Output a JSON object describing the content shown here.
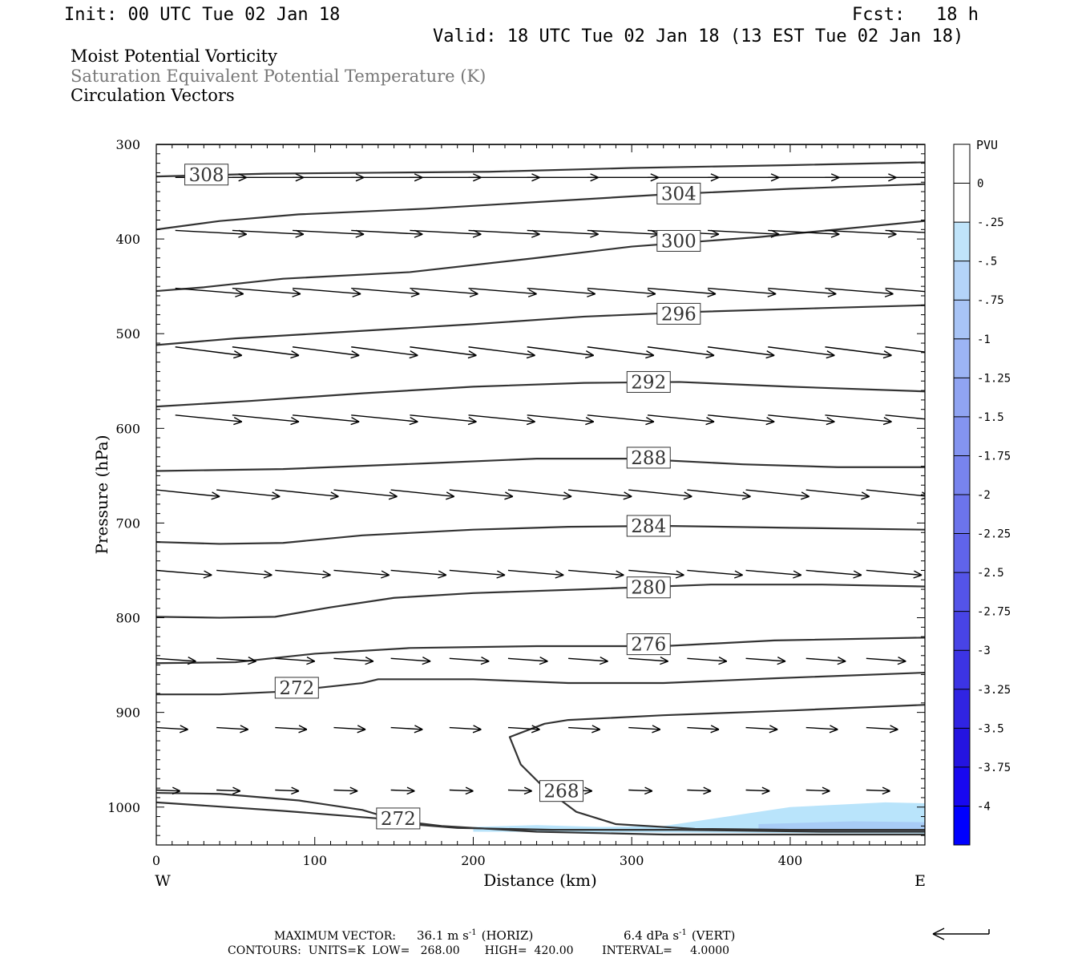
{
  "header": {
    "init": "Init: 00 UTC Tue 02 Jan 18",
    "fcst_label": "Fcst:",
    "fcst_value": "18 h",
    "valid": "Valid: 18 UTC Tue 02 Jan 18 (13 EST Tue 02 Jan 18)",
    "title_lines": [
      "Moist Potential Vorticity",
      "Saturation Equivalent Potential Temperature (K)",
      "Circulation Vectors"
    ]
  },
  "colors": {
    "contour": "#333333",
    "vector": "#000000",
    "title_secondary": "#777777",
    "shade_light": "#b9e4fb",
    "shade_mid": "#a8ccf6",
    "colorbar": [
      "#ffffff",
      "#ffffff",
      "#c0e4fa",
      "#b4d4f8",
      "#a8c4f6",
      "#9cb4f4",
      "#90a4f2",
      "#8494f0",
      "#7884ee",
      "#6c74ec",
      "#6064ea",
      "#5454e8",
      "#4844e6",
      "#3c34e4",
      "#3024e2",
      "#2414e0",
      "#1808f0",
      "#0000ff"
    ]
  },
  "chart_data": {
    "type": "contour",
    "xlabel": "Distance (km)",
    "ylabel": "Pressure (hPa)",
    "xlim": [
      0,
      485
    ],
    "ylim": [
      300,
      1040
    ],
    "y_reversed": true,
    "x_ticks": [
      0,
      100,
      200,
      300,
      400
    ],
    "x_tick_labels": [
      "0",
      "100",
      "200",
      "300",
      "400"
    ],
    "y_ticks": [
      300,
      400,
      500,
      600,
      700,
      800,
      900,
      1000
    ],
    "y_tick_labels": [
      "300",
      "400",
      "500",
      "600",
      "700",
      "800",
      "900",
      "1000"
    ],
    "x_end_labels": {
      "left": "W",
      "right": "E"
    },
    "contours": [
      {
        "value": 304,
        "label": "",
        "points": [
          [
            0,
            300
          ],
          [
            485,
            300
          ]
        ]
      },
      {
        "value": 308,
        "label": "308",
        "label_at": [
          18,
          332
        ],
        "points": [
          [
            0,
            334
          ],
          [
            70,
            331
          ],
          [
            140,
            330
          ],
          [
            210,
            329
          ],
          [
            300,
            325
          ],
          [
            400,
            322
          ],
          [
            485,
            319
          ]
        ]
      },
      {
        "value": 304,
        "label": "304",
        "label_at": [
          316,
          352
        ],
        "points": [
          [
            0,
            390
          ],
          [
            40,
            381
          ],
          [
            90,
            374
          ],
          [
            170,
            368
          ],
          [
            250,
            360
          ],
          [
            320,
            353
          ],
          [
            400,
            347
          ],
          [
            485,
            342
          ]
        ]
      },
      {
        "value": 300,
        "label": "300",
        "label_at": [
          316,
          402
        ],
        "points": [
          [
            0,
            455
          ],
          [
            30,
            451
          ],
          [
            80,
            442
          ],
          [
            160,
            435
          ],
          [
            240,
            420
          ],
          [
            300,
            408
          ],
          [
            380,
            398
          ],
          [
            485,
            381
          ]
        ]
      },
      {
        "value": 296,
        "label": "296",
        "label_at": [
          316,
          479
        ],
        "points": [
          [
            0,
            512
          ],
          [
            50,
            505
          ],
          [
            120,
            498
          ],
          [
            200,
            490
          ],
          [
            270,
            482
          ],
          [
            340,
            477
          ],
          [
            420,
            473
          ],
          [
            485,
            470
          ]
        ]
      },
      {
        "value": 292,
        "label": "292",
        "label_at": [
          297,
          551
        ],
        "points": [
          [
            0,
            577
          ],
          [
            60,
            571
          ],
          [
            130,
            563
          ],
          [
            200,
            556
          ],
          [
            270,
            552
          ],
          [
            330,
            551
          ],
          [
            400,
            556
          ],
          [
            485,
            561
          ]
        ]
      },
      {
        "value": 288,
        "label": "288",
        "label_at": [
          297,
          631
        ],
        "points": [
          [
            0,
            645
          ],
          [
            80,
            643
          ],
          [
            170,
            637
          ],
          [
            240,
            632
          ],
          [
            300,
            632
          ],
          [
            370,
            638
          ],
          [
            430,
            641
          ],
          [
            485,
            641
          ]
        ]
      },
      {
        "value": 284,
        "label": "284",
        "label_at": [
          297,
          703
        ],
        "points": [
          [
            0,
            720
          ],
          [
            40,
            722
          ],
          [
            80,
            721
          ],
          [
            130,
            713
          ],
          [
            200,
            707
          ],
          [
            260,
            704
          ],
          [
            320,
            703
          ],
          [
            400,
            705
          ],
          [
            485,
            707
          ]
        ]
      },
      {
        "value": 280,
        "label": "280",
        "label_at": [
          297,
          768
        ],
        "points": [
          [
            0,
            799
          ],
          [
            40,
            800
          ],
          [
            75,
            799
          ],
          [
            110,
            789
          ],
          [
            150,
            779
          ],
          [
            200,
            774
          ],
          [
            270,
            770
          ],
          [
            350,
            765
          ],
          [
            420,
            765
          ],
          [
            485,
            767
          ]
        ]
      },
      {
        "value": 276,
        "label": "276",
        "label_at": [
          297,
          828
        ],
        "points": [
          [
            0,
            848
          ],
          [
            50,
            847
          ],
          [
            100,
            838
          ],
          [
            160,
            832
          ],
          [
            240,
            830
          ],
          [
            320,
            830
          ],
          [
            390,
            824
          ],
          [
            485,
            821
          ]
        ]
      },
      {
        "value": 272,
        "label": "272",
        "label_at": [
          75,
          874
        ],
        "points": [
          [
            0,
            881
          ],
          [
            40,
            881
          ],
          [
            80,
            878
          ],
          [
            130,
            869
          ],
          [
            140,
            865
          ],
          [
            200,
            865
          ],
          [
            260,
            869
          ],
          [
            320,
            869
          ],
          [
            390,
            864
          ],
          [
            485,
            858
          ]
        ]
      },
      {
        "value": 268,
        "label": "268",
        "label_at": [
          242,
          983
        ],
        "points": [
          [
            485,
            892
          ],
          [
            400,
            898
          ],
          [
            320,
            903
          ],
          [
            260,
            908
          ],
          [
            245,
            912
          ],
          [
            223,
            926
          ],
          [
            230,
            955
          ],
          [
            245,
            980
          ],
          [
            265,
            1005
          ],
          [
            290,
            1018
          ],
          [
            340,
            1023
          ],
          [
            400,
            1024
          ],
          [
            485,
            1024
          ]
        ]
      },
      {
        "value": 272,
        "label": "272",
        "label_at": [
          139,
          1012
        ],
        "points": [
          [
            0,
            985
          ],
          [
            40,
            986
          ],
          [
            90,
            993
          ],
          [
            130,
            1003
          ],
          [
            160,
            1018
          ],
          [
            190,
            1022
          ],
          [
            250,
            1024
          ],
          [
            330,
            1024
          ],
          [
            420,
            1026
          ],
          [
            485,
            1026
          ]
        ]
      },
      {
        "value": 276,
        "label": "",
        "points": [
          [
            0,
            995
          ],
          [
            80,
            1004
          ],
          [
            140,
            1012
          ],
          [
            180,
            1020
          ],
          [
            240,
            1026
          ],
          [
            320,
            1029
          ],
          [
            485,
            1029
          ]
        ]
      }
    ],
    "vector_rows": [
      {
        "p": 335,
        "dx": 45,
        "dp": 0,
        "x": [
          12,
          48,
          86,
          123,
          160,
          197,
          234,
          272,
          310,
          348,
          386,
          422,
          460
        ]
      },
      {
        "p": 391,
        "dx": 45,
        "dp": 4,
        "x": [
          12,
          48,
          86,
          123,
          160,
          197,
          234,
          272,
          310,
          348,
          386,
          422,
          460
        ]
      },
      {
        "p": 452,
        "dx": 43,
        "dp": 6,
        "x": [
          12,
          48,
          86,
          123,
          160,
          197,
          234,
          272,
          310,
          348,
          386,
          422,
          460
        ]
      },
      {
        "p": 514,
        "dx": 42,
        "dp": 9,
        "x": [
          12,
          48,
          86,
          123,
          160,
          197,
          234,
          272,
          310,
          348,
          386,
          422,
          460
        ]
      },
      {
        "p": 586,
        "dx": 42,
        "dp": 7,
        "x": [
          12,
          48,
          86,
          123,
          160,
          197,
          234,
          272,
          310,
          348,
          386,
          422,
          460
        ]
      },
      {
        "p": 665,
        "dx": 40,
        "dp": 7,
        "x": [
          0,
          38,
          75,
          112,
          148,
          185,
          222,
          260,
          298,
          335,
          372,
          410,
          448
        ]
      },
      {
        "p": 750,
        "dx": 35,
        "dp": 5,
        "x": [
          0,
          38,
          75,
          112,
          148,
          185,
          222,
          260,
          298,
          335,
          372,
          410,
          448
        ]
      },
      {
        "p": 843,
        "dx": 25,
        "dp": 3,
        "x": [
          0,
          38,
          75,
          112,
          148,
          185,
          222,
          260,
          298,
          335,
          372,
          410,
          448
        ]
      },
      {
        "p": 916,
        "dx": 20,
        "dp": 2,
        "x": [
          0,
          38,
          75,
          112,
          148,
          185,
          222,
          260,
          298,
          335,
          372,
          410,
          448
        ]
      },
      {
        "p": 982,
        "dx": 15,
        "dp": 1,
        "x": [
          0,
          38,
          75,
          112,
          148,
          185,
          222,
          260,
          298,
          335,
          372,
          410,
          448
        ]
      }
    ],
    "shaded_regions": [
      {
        "level": "-0.25",
        "color_key": "shade_light",
        "points": [
          [
            200,
            1021
          ],
          [
            240,
            1019
          ],
          [
            280,
            1021
          ],
          [
            320,
            1020
          ],
          [
            360,
            1010
          ],
          [
            400,
            1000
          ],
          [
            460,
            995
          ],
          [
            485,
            996
          ],
          [
            485,
            1028
          ],
          [
            200,
            1026
          ]
        ]
      },
      {
        "level": "-0.5",
        "color_key": "shade_mid",
        "points": [
          [
            380,
            1018
          ],
          [
            440,
            1015
          ],
          [
            485,
            1016
          ],
          [
            485,
            1026
          ],
          [
            380,
            1026
          ]
        ]
      }
    ],
    "colorbar": {
      "title": "PVU",
      "labels": [
        "0",
        "-.25",
        "-.5",
        "-.75",
        "-1",
        "-1.25",
        "-1.5",
        "-1.75",
        "-2",
        "-2.25",
        "-2.5",
        "-2.75",
        "-3",
        "-3.25",
        "-3.5",
        "-3.75",
        "-4"
      ]
    }
  },
  "footer": {
    "max_vector_label": "MAXIMUM VECTOR:",
    "horiz_value": "36.1 m s",
    "horiz_unit": "(HORIZ)",
    "vert_value": "6.4 dPa s",
    "vert_unit": "(VERT)",
    "exponent": "-1",
    "contours_line": "CONTOURS:  UNITS=K  LOW=   268.00       HIGH=  420.00        INTERVAL=     4.0000"
  }
}
